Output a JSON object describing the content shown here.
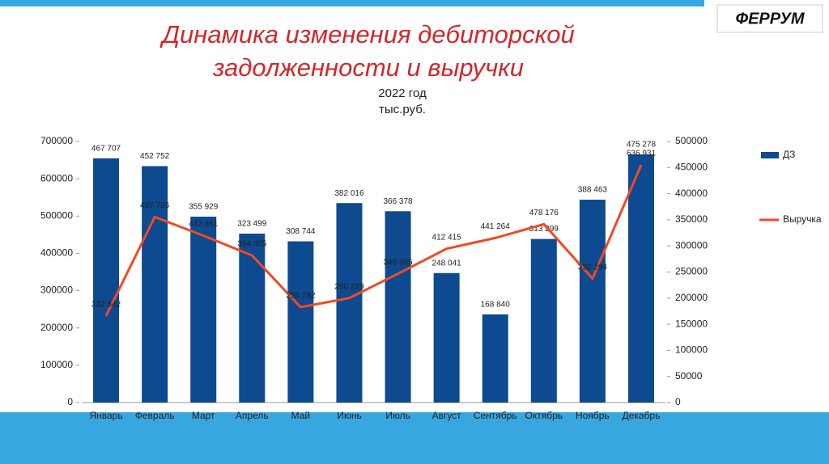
{
  "logo": "ФЕРРУМ",
  "chart_data": {
    "type": "combo",
    "title": [
      "Динамика изменения дебиторской",
      "задолженности и выручки"
    ],
    "subtitle": [
      "2022 год",
      "тыс.руб."
    ],
    "categories": [
      "Январь",
      "Февраль",
      "Март",
      "Апрель",
      "Май",
      "Июнь",
      "Июль",
      "Август",
      "Сентябрь",
      "Октябрь",
      "Ноябрь",
      "Декабрь"
    ],
    "series": [
      {
        "name": "ДЗ",
        "type": "bar",
        "axis": "y2",
        "color": "#0d4a8f",
        "values": [
          467707,
          452752,
          355929,
          323499,
          308744,
          382016,
          366378,
          248041,
          168840,
          313299,
          388463,
          475278
        ],
        "value_labels": [
          "467 707",
          "452 752",
          "355 929",
          "323 499",
          "308 744",
          "382 016",
          "366 378",
          "248 041",
          "168 840",
          "313 299",
          "388 463",
          "475 278"
        ]
      },
      {
        "name": "Выручка",
        "type": "line",
        "axis": "y",
        "color": "#ef4a23",
        "values": [
          232642,
          497726,
          447461,
          394405,
          255792,
          280229,
          345395,
          412415,
          441264,
          478176,
          332294,
          636931
        ],
        "value_labels": [
          "232 642",
          "497 726",
          "447 461",
          "394 405",
          "255 792",
          "280 229",
          "345 395",
          "412 415",
          "441 264",
          "478 176",
          "332 294",
          "636 931"
        ]
      }
    ],
    "ylim": [
      0,
      700000
    ],
    "yticks": [
      0,
      100000,
      200000,
      300000,
      400000,
      500000,
      600000,
      700000
    ],
    "y2lim": [
      0,
      500000
    ],
    "y2ticks": [
      0,
      50000,
      100000,
      150000,
      200000,
      250000,
      300000,
      350000,
      400000,
      450000,
      500000
    ],
    "legend": "right"
  }
}
